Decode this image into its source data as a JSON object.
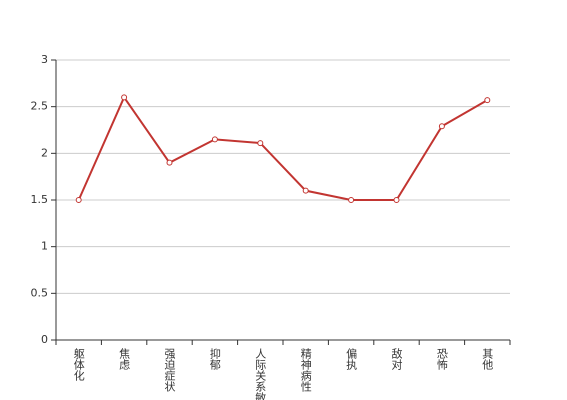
{
  "chart_data": {
    "type": "line",
    "categories": [
      "躯体化",
      "焦虑",
      "强迫症状",
      "抑郁",
      "人际关系敏感",
      "精神病性",
      "偏执",
      "敌对",
      "恐怖",
      "其他"
    ],
    "values": [
      1.5,
      2.6,
      1.9,
      2.15,
      2.11,
      1.6,
      1.5,
      1.5,
      2.29,
      2.57
    ],
    "color": "#c23531",
    "ylim": [
      0,
      3
    ],
    "yticks": [
      0,
      0.5,
      1,
      1.5,
      2,
      2.5,
      3
    ],
    "grid": true
  }
}
